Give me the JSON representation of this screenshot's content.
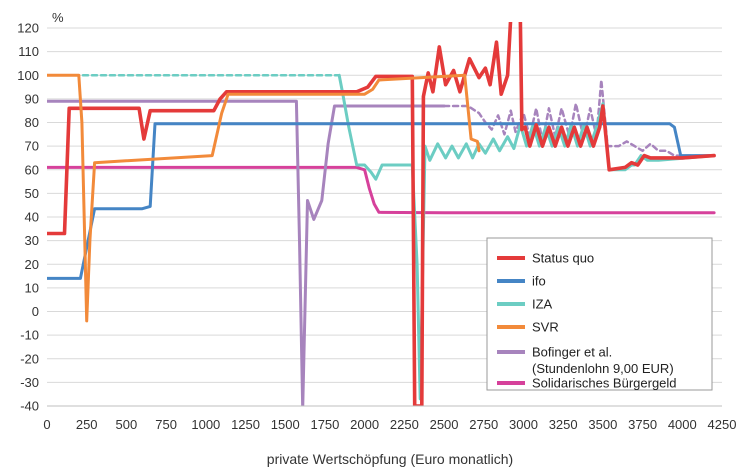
{
  "chart_data": {
    "type": "line",
    "title": "",
    "xlabel": "private Wertschöpfung (Euro monatlich)",
    "ylabel": "%",
    "xlim": [
      0,
      4250
    ],
    "ylim": [
      -40,
      120
    ],
    "xticks": [
      0,
      250,
      500,
      750,
      1000,
      1250,
      1500,
      1750,
      2000,
      2250,
      2500,
      2750,
      3000,
      3250,
      3500,
      3750,
      4000,
      4250
    ],
    "yticks": [
      -40,
      -30,
      -20,
      -10,
      0,
      10,
      20,
      30,
      40,
      50,
      60,
      70,
      80,
      90,
      100,
      110,
      120
    ],
    "grid": "horizontal",
    "legend_position": "bottom-right",
    "series": [
      {
        "name": "Solidarisches Bürgergeld",
        "color": "#d6419b",
        "style": "solid",
        "points": [
          [
            0,
            61
          ],
          [
            1950,
            61
          ],
          [
            2000,
            60
          ],
          [
            2030,
            52
          ],
          [
            2060,
            45.5
          ],
          [
            2090,
            42
          ],
          [
            2500,
            41.8
          ],
          [
            4200,
            41.8
          ]
        ]
      },
      {
        "name": "Bofinger et al. (Stundenlohn 9,00 EUR)",
        "color": "#a784bd",
        "style": "solid",
        "points": [
          [
            0,
            89
          ],
          [
            1570,
            89
          ],
          [
            1590,
            30
          ],
          [
            1610,
            -41
          ],
          [
            1640,
            47
          ],
          [
            1680,
            39
          ],
          [
            1730,
            47
          ],
          [
            1770,
            71
          ],
          [
            1810,
            87
          ],
          [
            2500,
            87
          ]
        ],
        "dashed_continuation": [
          [
            2500,
            87
          ],
          [
            2650,
            87
          ],
          [
            2720,
            84
          ],
          [
            2760,
            80
          ],
          [
            2800,
            77
          ],
          [
            2840,
            83
          ],
          [
            2880,
            75
          ],
          [
            2920,
            85
          ],
          [
            2950,
            76
          ],
          [
            3000,
            84
          ],
          [
            3040,
            74
          ],
          [
            3080,
            86
          ],
          [
            3120,
            72
          ],
          [
            3160,
            86
          ],
          [
            3200,
            74
          ],
          [
            3240,
            86
          ],
          [
            3290,
            74
          ],
          [
            3330,
            88
          ],
          [
            3380,
            73
          ],
          [
            3420,
            86
          ],
          [
            3460,
            74
          ],
          [
            3490,
            98
          ],
          [
            3530,
            70
          ],
          [
            3600,
            70
          ],
          [
            3650,
            72
          ],
          [
            3700,
            70
          ],
          [
            3750,
            68
          ],
          [
            3800,
            71
          ],
          [
            3850,
            68
          ],
          [
            3900,
            68
          ],
          [
            3950,
            66
          ],
          [
            4000,
            66
          ],
          [
            4200,
            66
          ]
        ]
      },
      {
        "name": "IZA",
        "color": "#6ccdc3",
        "style": "solid",
        "dashed_start": [
          [
            0,
            100
          ],
          [
            1840,
            100
          ]
        ],
        "points": [
          [
            1840,
            100
          ],
          [
            1860,
            93
          ],
          [
            1900,
            78
          ],
          [
            1950,
            62
          ],
          [
            2000,
            62
          ],
          [
            2040,
            59
          ],
          [
            2070,
            56
          ],
          [
            2110,
            62
          ],
          [
            2300,
            62
          ],
          [
            2330,
            20
          ],
          [
            2350,
            -37
          ],
          [
            2380,
            70
          ],
          [
            2410,
            64
          ],
          [
            2460,
            71
          ],
          [
            2510,
            65
          ],
          [
            2550,
            70
          ],
          [
            2590,
            65
          ],
          [
            2640,
            71
          ],
          [
            2680,
            65
          ],
          [
            2720,
            71
          ],
          [
            2760,
            67
          ],
          [
            2810,
            73
          ],
          [
            2850,
            68
          ],
          [
            2900,
            74
          ],
          [
            2940,
            69
          ],
          [
            2980,
            79
          ],
          [
            3020,
            70
          ],
          [
            3060,
            79
          ],
          [
            3100,
            70
          ],
          [
            3140,
            78
          ],
          [
            3180,
            70
          ],
          [
            3220,
            78
          ],
          [
            3260,
            70
          ],
          [
            3300,
            79
          ],
          [
            3340,
            70
          ],
          [
            3380,
            79
          ],
          [
            3420,
            70
          ],
          [
            3460,
            78
          ],
          [
            3500,
            88
          ],
          [
            3540,
            60
          ],
          [
            3640,
            60
          ],
          [
            3680,
            62
          ],
          [
            3700,
            62
          ],
          [
            3740,
            66
          ],
          [
            3780,
            64
          ],
          [
            3850,
            64
          ],
          [
            4200,
            66
          ]
        ]
      },
      {
        "name": "ifo",
        "color": "#4585c5",
        "style": "solid",
        "points": [
          [
            0,
            14
          ],
          [
            210,
            14
          ],
          [
            300,
            43.5
          ],
          [
            600,
            43.5
          ],
          [
            650,
            44.5
          ],
          [
            680,
            79.5
          ],
          [
            3920,
            79.5
          ],
          [
            3950,
            78
          ],
          [
            3990,
            66
          ],
          [
            4200,
            66
          ]
        ]
      },
      {
        "name": "Status quo",
        "color": "#e43a3a",
        "style": "solid",
        "points": [
          [
            0,
            33
          ],
          [
            110,
            33
          ],
          [
            140,
            86
          ],
          [
            580,
            86
          ],
          [
            610,
            73
          ],
          [
            650,
            85
          ],
          [
            1050,
            85
          ],
          [
            1090,
            90
          ],
          [
            1130,
            93
          ],
          [
            1950,
            93
          ],
          [
            2020,
            95
          ],
          [
            2070,
            99.5
          ],
          [
            2300,
            99.5
          ],
          [
            2315,
            -40
          ],
          [
            2360,
            -40
          ],
          [
            2370,
            91
          ],
          [
            2400,
            101
          ],
          [
            2430,
            93
          ],
          [
            2470,
            112
          ],
          [
            2510,
            96
          ],
          [
            2560,
            102
          ],
          [
            2600,
            93
          ],
          [
            2660,
            107
          ],
          [
            2720,
            99
          ],
          [
            2760,
            103
          ],
          [
            2790,
            96
          ],
          [
            2830,
            114
          ],
          [
            2860,
            92
          ],
          [
            2900,
            100
          ],
          [
            2920,
            125
          ]
        ],
        "tail": [
          [
            2980,
            125
          ],
          [
            2990,
            77
          ],
          [
            3010,
            78
          ],
          [
            3040,
            70
          ],
          [
            3080,
            79
          ],
          [
            3120,
            70
          ],
          [
            3160,
            78
          ],
          [
            3200,
            70
          ],
          [
            3240,
            78
          ],
          [
            3280,
            70
          ],
          [
            3320,
            78
          ],
          [
            3360,
            70
          ],
          [
            3400,
            78
          ],
          [
            3440,
            70
          ],
          [
            3480,
            78
          ],
          [
            3500,
            87
          ],
          [
            3540,
            60
          ],
          [
            3640,
            61
          ],
          [
            3680,
            63
          ],
          [
            3720,
            62
          ],
          [
            3760,
            66
          ],
          [
            3800,
            65
          ],
          [
            3900,
            65
          ],
          [
            4000,
            65
          ],
          [
            4200,
            66
          ]
        ]
      },
      {
        "name": "SVR",
        "color": "#f28a3a",
        "style": "solid",
        "dashed_start": [],
        "points": [
          [
            0,
            100
          ],
          [
            200,
            100
          ],
          [
            220,
            80
          ],
          [
            250,
            -4
          ],
          [
            270,
            30
          ],
          [
            300,
            63
          ],
          [
            1040,
            66
          ],
          [
            1100,
            84
          ],
          [
            1140,
            92
          ],
          [
            2000,
            92
          ],
          [
            2050,
            94
          ],
          [
            2090,
            98
          ],
          [
            2630,
            100
          ],
          [
            2670,
            73
          ],
          [
            2710,
            72
          ],
          [
            2720,
            68
          ]
        ]
      }
    ]
  },
  "legend": {
    "entries": [
      {
        "label": "Status quo",
        "color": "#e43a3a"
      },
      {
        "label": "ifo",
        "color": "#4585c5"
      },
      {
        "label": "IZA",
        "color": "#6ccdc3"
      },
      {
        "label": "SVR",
        "color": "#f28a3a"
      },
      {
        "label": "Bofinger et al.",
        "label_line2": "(Stundenlohn 9,00 EUR)",
        "color": "#a784bd"
      },
      {
        "label": "Solidarisches Bürgergeld",
        "color": "#d6419b"
      }
    ]
  }
}
